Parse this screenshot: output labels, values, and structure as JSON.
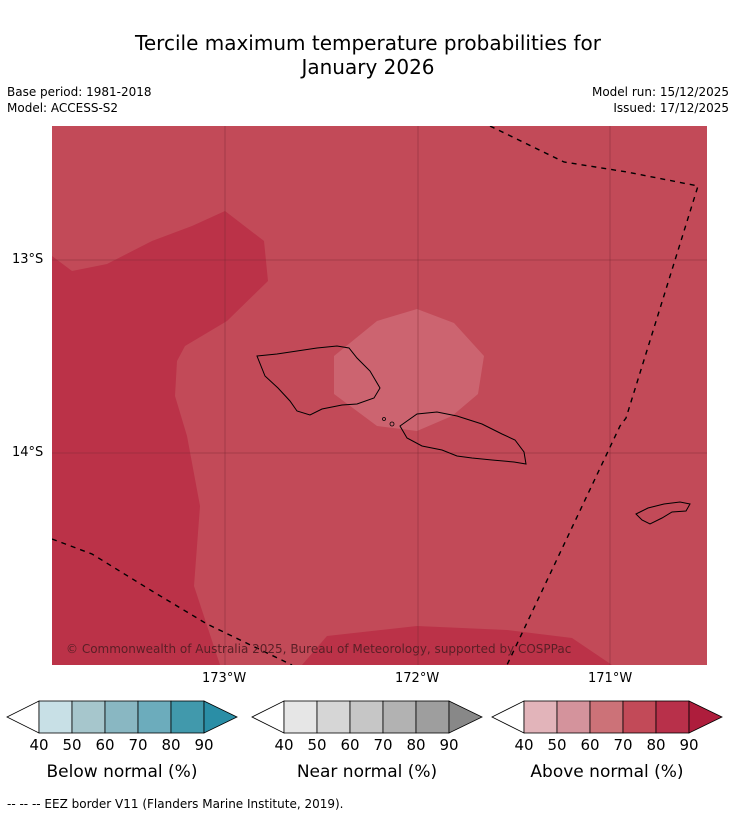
{
  "title": {
    "line1": "Tercile maximum temperature probabilities for",
    "line2": "January 2026"
  },
  "meta": {
    "base_period": "Base period: 1981-2018",
    "model": "Model: ACCESS-S2",
    "model_run": "Model run: 15/12/2025",
    "issued": "Issued: 17/12/2025"
  },
  "map": {
    "lat_labels": [
      "13°S",
      "14°S"
    ],
    "lon_labels": [
      "173°W",
      "172°W",
      "171°W"
    ],
    "copyright": "© Commonwealth of Australia 2025, Bureau of Meteorology, supported by COSPPac",
    "colors": {
      "above_70": "#c24a58",
      "above_80": "#bb3248",
      "above_60": "#cc6470",
      "border": "#000000"
    }
  },
  "colorbars": [
    {
      "title": "Below normal (%)",
      "ticks": [
        "40",
        "50",
        "60",
        "70",
        "80",
        "90"
      ],
      "colors": [
        "#ffffff",
        "#c8e0e6",
        "#a6c6cc",
        "#89b7c2",
        "#6cacbc",
        "#4199ac",
        "#2a8ea6"
      ]
    },
    {
      "title": "Near normal (%)",
      "ticks": [
        "40",
        "50",
        "60",
        "70",
        "80",
        "90"
      ],
      "colors": [
        "#ffffff",
        "#e6e6e6",
        "#d6d6d6",
        "#c6c6c6",
        "#b2b2b2",
        "#9e9e9e",
        "#888888"
      ]
    },
    {
      "title": "Above normal (%)",
      "ticks": [
        "40",
        "50",
        "60",
        "70",
        "80",
        "90"
      ],
      "colors": [
        "#ffffff",
        "#e2b4ba",
        "#d4939c",
        "#cc7278",
        "#c24a58",
        "#b8304a",
        "#ae1d3c"
      ]
    }
  ],
  "footnote": "--  --  -- EEZ border V11 (Flanders Marine Institute, 2019)."
}
